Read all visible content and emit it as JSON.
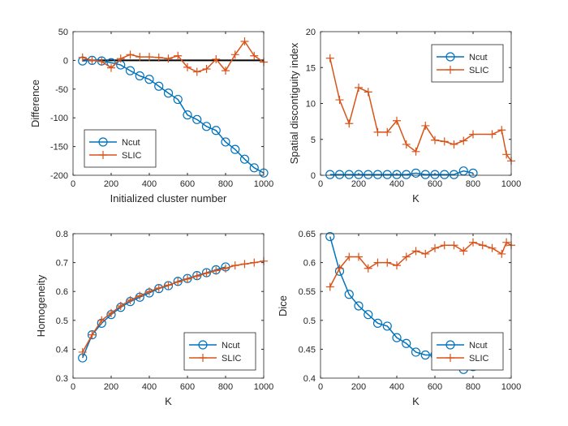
{
  "chart_data": [
    {
      "type": "line",
      "xlabel": "Initialized cluster number",
      "ylabel": "Difference",
      "xlim": [
        0,
        1000
      ],
      "xticks": [
        0,
        200,
        400,
        600,
        800,
        1000
      ],
      "ylim": [
        -200,
        50
      ],
      "yticks": [
        -200,
        -150,
        -100,
        -50,
        0,
        50
      ],
      "legend": "southwest",
      "hline": {
        "y": 0,
        "x": [
          50,
          1000
        ],
        "color": "#000000"
      },
      "series": [
        {
          "name": "Ncut",
          "color": "#0072BD",
          "marker": "o",
          "x": [
            50,
            100,
            150,
            200,
            250,
            300,
            350,
            400,
            450,
            500,
            550,
            600,
            650,
            700,
            750,
            800,
            850,
            900,
            950,
            1000
          ],
          "values": [
            -1,
            0,
            -1,
            -4,
            -8,
            -18,
            -27,
            -33,
            -45,
            -57,
            -68,
            -95,
            -103,
            -115,
            -122,
            -142,
            -155,
            -172,
            -187,
            -196
          ]
        },
        {
          "name": "SLIC",
          "color": "#D95319",
          "marker": "+",
          "x": [
            50,
            100,
            150,
            200,
            250,
            300,
            350,
            400,
            450,
            500,
            550,
            600,
            650,
            700,
            750,
            800,
            850,
            900,
            950,
            1000
          ],
          "values": [
            5,
            0,
            -2,
            -13,
            3,
            10,
            6,
            6,
            5,
            3,
            8,
            -12,
            -20,
            -15,
            2,
            -18,
            10,
            33,
            8,
            -3
          ]
        }
      ]
    },
    {
      "type": "line",
      "xlabel": "K",
      "ylabel": "Spatial discontiguity index",
      "xlim": [
        0,
        1000
      ],
      "xticks": [
        0,
        200,
        400,
        600,
        800,
        1000
      ],
      "ylim": [
        0,
        20
      ],
      "yticks": [
        0,
        5,
        10,
        15,
        20
      ],
      "legend": "northeast",
      "series": [
        {
          "name": "Ncut",
          "color": "#0072BD",
          "marker": "o",
          "x": [
            50,
            100,
            150,
            200,
            250,
            300,
            350,
            400,
            450,
            500,
            550,
            600,
            650,
            700,
            750,
            800
          ],
          "values": [
            0.1,
            0.1,
            0.1,
            0.1,
            0.1,
            0.1,
            0.1,
            0.1,
            0.1,
            0.3,
            0.1,
            0.1,
            0.1,
            0.1,
            0.6,
            0.3
          ]
        },
        {
          "name": "SLIC",
          "color": "#D95319",
          "marker": "+",
          "x": [
            50,
            100,
            150,
            200,
            250,
            300,
            350,
            400,
            450,
            500,
            550,
            600,
            650,
            700,
            750,
            800,
            900,
            950,
            975,
            1000
          ],
          "values": [
            16.3,
            10.5,
            7.2,
            12.2,
            11.6,
            6,
            6,
            7.6,
            4.3,
            3.3,
            6.9,
            4.9,
            4.7,
            4.3,
            4.8,
            5.7,
            5.7,
            6.3,
            2.9,
            2
          ]
        }
      ]
    },
    {
      "type": "line",
      "xlabel": "K",
      "ylabel": "Homogeneity",
      "xlim": [
        0,
        1000
      ],
      "xticks": [
        0,
        200,
        400,
        600,
        800,
        1000
      ],
      "ylim": [
        0.3,
        0.8
      ],
      "yticks": [
        0.3,
        0.4,
        0.5,
        0.6,
        0.7,
        0.8
      ],
      "legend": "southeast",
      "series": [
        {
          "name": "Ncut",
          "color": "#0072BD",
          "marker": "o",
          "x": [
            50,
            100,
            150,
            200,
            250,
            300,
            350,
            400,
            450,
            500,
            550,
            600,
            650,
            700,
            750,
            800
          ],
          "values": [
            0.37,
            0.45,
            0.49,
            0.52,
            0.545,
            0.565,
            0.58,
            0.595,
            0.61,
            0.62,
            0.635,
            0.645,
            0.655,
            0.665,
            0.675,
            0.685
          ]
        },
        {
          "name": "SLIC",
          "color": "#D95319",
          "marker": "+",
          "x": [
            50,
            100,
            150,
            200,
            250,
            300,
            350,
            400,
            450,
            500,
            550,
            600,
            650,
            700,
            750,
            800,
            850,
            900,
            950,
            1000
          ],
          "values": [
            0.39,
            0.45,
            0.5,
            0.525,
            0.55,
            0.57,
            0.585,
            0.6,
            0.612,
            0.622,
            0.633,
            0.643,
            0.653,
            0.663,
            0.672,
            0.68,
            0.69,
            0.695,
            0.7,
            0.705
          ]
        }
      ]
    },
    {
      "type": "line",
      "xlabel": "K",
      "ylabel": "Dice",
      "xlim": [
        0,
        1000
      ],
      "xticks": [
        0,
        200,
        400,
        600,
        800,
        1000
      ],
      "ylim": [
        0.4,
        0.65
      ],
      "yticks": [
        0.4,
        0.45,
        0.5,
        0.55,
        0.6,
        0.65
      ],
      "legend": "southeast",
      "series": [
        {
          "name": "Ncut",
          "color": "#0072BD",
          "marker": "o",
          "x": [
            50,
            100,
            150,
            200,
            250,
            300,
            350,
            400,
            450,
            500,
            550,
            600,
            650,
            700,
            750,
            800
          ],
          "values": [
            0.645,
            0.585,
            0.545,
            0.525,
            0.51,
            0.495,
            0.49,
            0.47,
            0.46,
            0.445,
            0.44,
            0.44,
            0.435,
            0.43,
            0.415,
            0.42
          ]
        },
        {
          "name": "SLIC",
          "color": "#D95319",
          "marker": "+",
          "x": [
            50,
            100,
            150,
            200,
            250,
            300,
            350,
            400,
            450,
            500,
            550,
            600,
            650,
            700,
            750,
            800,
            850,
            900,
            950,
            975,
            1000
          ],
          "values": [
            0.558,
            0.59,
            0.61,
            0.61,
            0.59,
            0.6,
            0.6,
            0.595,
            0.61,
            0.62,
            0.615,
            0.625,
            0.63,
            0.63,
            0.62,
            0.635,
            0.63,
            0.625,
            0.615,
            0.635,
            0.63
          ]
        }
      ]
    }
  ]
}
